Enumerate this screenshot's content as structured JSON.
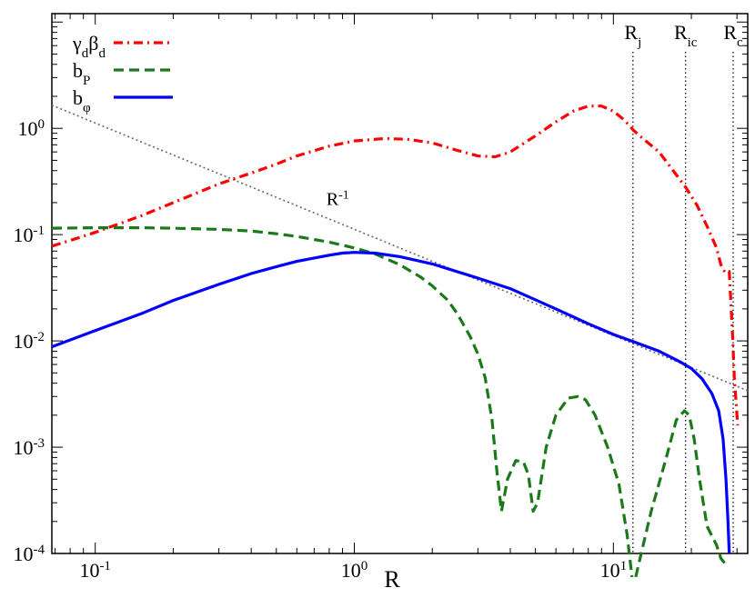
{
  "chart_data": {
    "type": "line",
    "title": "",
    "xlabel": "R",
    "ylabel": "",
    "xscale": "log",
    "yscale": "log",
    "xlim": [
      0.068,
      33
    ],
    "ylim": [
      0.0001,
      12
    ],
    "x_ticks": [
      {
        "value": 0.1,
        "base": "10",
        "exp": "-1"
      },
      {
        "value": 1,
        "base": "10",
        "exp": "0"
      },
      {
        "value": 10,
        "base": "10",
        "exp": "1"
      }
    ],
    "y_ticks": [
      {
        "value": 0.0001,
        "base": "10",
        "exp": "-4"
      },
      {
        "value": 0.001,
        "base": "10",
        "exp": "-3"
      },
      {
        "value": 0.01,
        "base": "10",
        "exp": "-2"
      },
      {
        "value": 0.1,
        "base": "10",
        "exp": "-1"
      },
      {
        "value": 1,
        "base": "10",
        "exp": "0"
      }
    ],
    "grid": false,
    "legend_position": "top-left",
    "series": [
      {
        "key": "gamma",
        "name_main": "γ",
        "name_sub1": "d",
        "name_mid": "β",
        "name_sub2": "d",
        "color": "#ff0000",
        "dash": "dashdot",
        "points": [
          [
            0.068,
            0.078
          ],
          [
            0.08,
            0.088
          ],
          [
            0.1,
            0.105
          ],
          [
            0.15,
            0.15
          ],
          [
            0.2,
            0.2
          ],
          [
            0.3,
            0.3
          ],
          [
            0.4,
            0.38
          ],
          [
            0.5,
            0.46
          ],
          [
            0.6,
            0.55
          ],
          [
            0.8,
            0.68
          ],
          [
            1.0,
            0.76
          ],
          [
            1.3,
            0.8
          ],
          [
            1.6,
            0.79
          ],
          [
            2.0,
            0.73
          ],
          [
            2.5,
            0.62
          ],
          [
            3.0,
            0.55
          ],
          [
            3.5,
            0.54
          ],
          [
            4.0,
            0.6
          ],
          [
            5.0,
            0.85
          ],
          [
            6.0,
            1.15
          ],
          [
            7.0,
            1.45
          ],
          [
            8.0,
            1.62
          ],
          [
            9.0,
            1.62
          ],
          [
            10.0,
            1.45
          ],
          [
            11.0,
            1.2
          ],
          [
            12.0,
            0.95
          ],
          [
            13.0,
            0.8
          ],
          [
            15.0,
            0.6
          ],
          [
            17.0,
            0.4
          ],
          [
            19.0,
            0.28
          ],
          [
            21.0,
            0.19
          ],
          [
            23.0,
            0.12
          ],
          [
            25.0,
            0.075
          ],
          [
            26.0,
            0.052
          ],
          [
            27.0,
            0.044
          ],
          [
            28.0,
            0.045
          ],
          [
            28.8,
            0.012
          ],
          [
            29.3,
            0.0045
          ],
          [
            29.8,
            0.0025
          ],
          [
            30.2,
            0.0016
          ]
        ]
      },
      {
        "key": "bp",
        "name_main": "b",
        "name_sub1": "P",
        "color": "#1a7a1a",
        "dash": "dash",
        "points": [
          [
            0.068,
            0.115
          ],
          [
            0.1,
            0.116
          ],
          [
            0.15,
            0.116
          ],
          [
            0.2,
            0.115
          ],
          [
            0.3,
            0.112
          ],
          [
            0.4,
            0.108
          ],
          [
            0.5,
            0.102
          ],
          [
            0.6,
            0.096
          ],
          [
            0.8,
            0.085
          ],
          [
            1.0,
            0.075
          ],
          [
            1.2,
            0.066
          ],
          [
            1.5,
            0.052
          ],
          [
            1.8,
            0.04
          ],
          [
            2.0,
            0.033
          ],
          [
            2.3,
            0.024
          ],
          [
            2.5,
            0.018
          ],
          [
            2.8,
            0.011
          ],
          [
            3.0,
            0.0075
          ],
          [
            3.2,
            0.0045
          ],
          [
            3.4,
            0.0018
          ],
          [
            3.55,
            0.0006
          ],
          [
            3.7,
            0.00025
          ],
          [
            3.9,
            0.0005
          ],
          [
            4.2,
            0.00075
          ],
          [
            4.5,
            0.00072
          ],
          [
            4.7,
            0.00055
          ],
          [
            4.9,
            0.00025
          ],
          [
            5.1,
            0.0003
          ],
          [
            5.5,
            0.001
          ],
          [
            6.0,
            0.002
          ],
          [
            6.7,
            0.0029
          ],
          [
            7.3,
            0.003
          ],
          [
            7.8,
            0.0028
          ],
          [
            8.5,
            0.002
          ],
          [
            9.5,
            0.001
          ],
          [
            10.5,
            0.00045
          ],
          [
            11.3,
            0.00015
          ],
          [
            11.8,
            6e-05
          ]
        ]
      },
      {
        "key": "bp2",
        "name_main": "",
        "name_sub1": "",
        "color": "#1a7a1a",
        "dash": "dash",
        "points": [
          [
            12.2,
            6e-05
          ],
          [
            12.8,
            0.0001
          ],
          [
            14.0,
            0.00025
          ],
          [
            16.0,
            0.0008
          ],
          [
            17.5,
            0.0018
          ],
          [
            18.8,
            0.0022
          ],
          [
            19.6,
            0.002
          ],
          [
            20.5,
            0.0012
          ],
          [
            21.5,
            0.0005
          ],
          [
            23.0,
            0.00018
          ],
          [
            25.0,
            0.00012
          ],
          [
            26.0,
            9e-05
          ],
          [
            27.0,
            8e-05
          ]
        ]
      },
      {
        "key": "bphi",
        "name_main": "b",
        "name_sub1": "φ",
        "color": "#0000ff",
        "dash": "solid",
        "points": [
          [
            0.068,
            0.0088
          ],
          [
            0.1,
            0.0125
          ],
          [
            0.15,
            0.018
          ],
          [
            0.2,
            0.024
          ],
          [
            0.3,
            0.034
          ],
          [
            0.4,
            0.043
          ],
          [
            0.5,
            0.05
          ],
          [
            0.6,
            0.056
          ],
          [
            0.8,
            0.064
          ],
          [
            0.9,
            0.067
          ],
          [
            1.0,
            0.068
          ],
          [
            1.2,
            0.067
          ],
          [
            1.5,
            0.062
          ],
          [
            2.0,
            0.053
          ],
          [
            3.0,
            0.039
          ],
          [
            4.0,
            0.031
          ],
          [
            6.0,
            0.02
          ],
          [
            8.0,
            0.0145
          ],
          [
            10.0,
            0.0115
          ],
          [
            12.0,
            0.0098
          ],
          [
            15.0,
            0.008
          ],
          [
            18.0,
            0.0064
          ],
          [
            20.0,
            0.0055
          ],
          [
            22.0,
            0.0044
          ],
          [
            24.0,
            0.0032
          ],
          [
            25.5,
            0.0022
          ],
          [
            26.5,
            0.0012
          ],
          [
            27.2,
            0.0005
          ],
          [
            27.7,
            0.0002
          ],
          [
            28.0,
            0.0001
          ]
        ]
      }
    ],
    "reference_line": {
      "label_main": "R",
      "label_exp": "-1",
      "color": "#666666",
      "points": [
        [
          0.068,
          1.65
        ],
        [
          33,
          0.0034
        ]
      ]
    },
    "vertical_lines": [
      {
        "x": 11.9,
        "label_main": "R",
        "label_sub": "j"
      },
      {
        "x": 19.0,
        "label_main": "R",
        "label_sub": "ic"
      },
      {
        "x": 29.0,
        "label_main": "R",
        "label_sub": "c"
      }
    ]
  }
}
